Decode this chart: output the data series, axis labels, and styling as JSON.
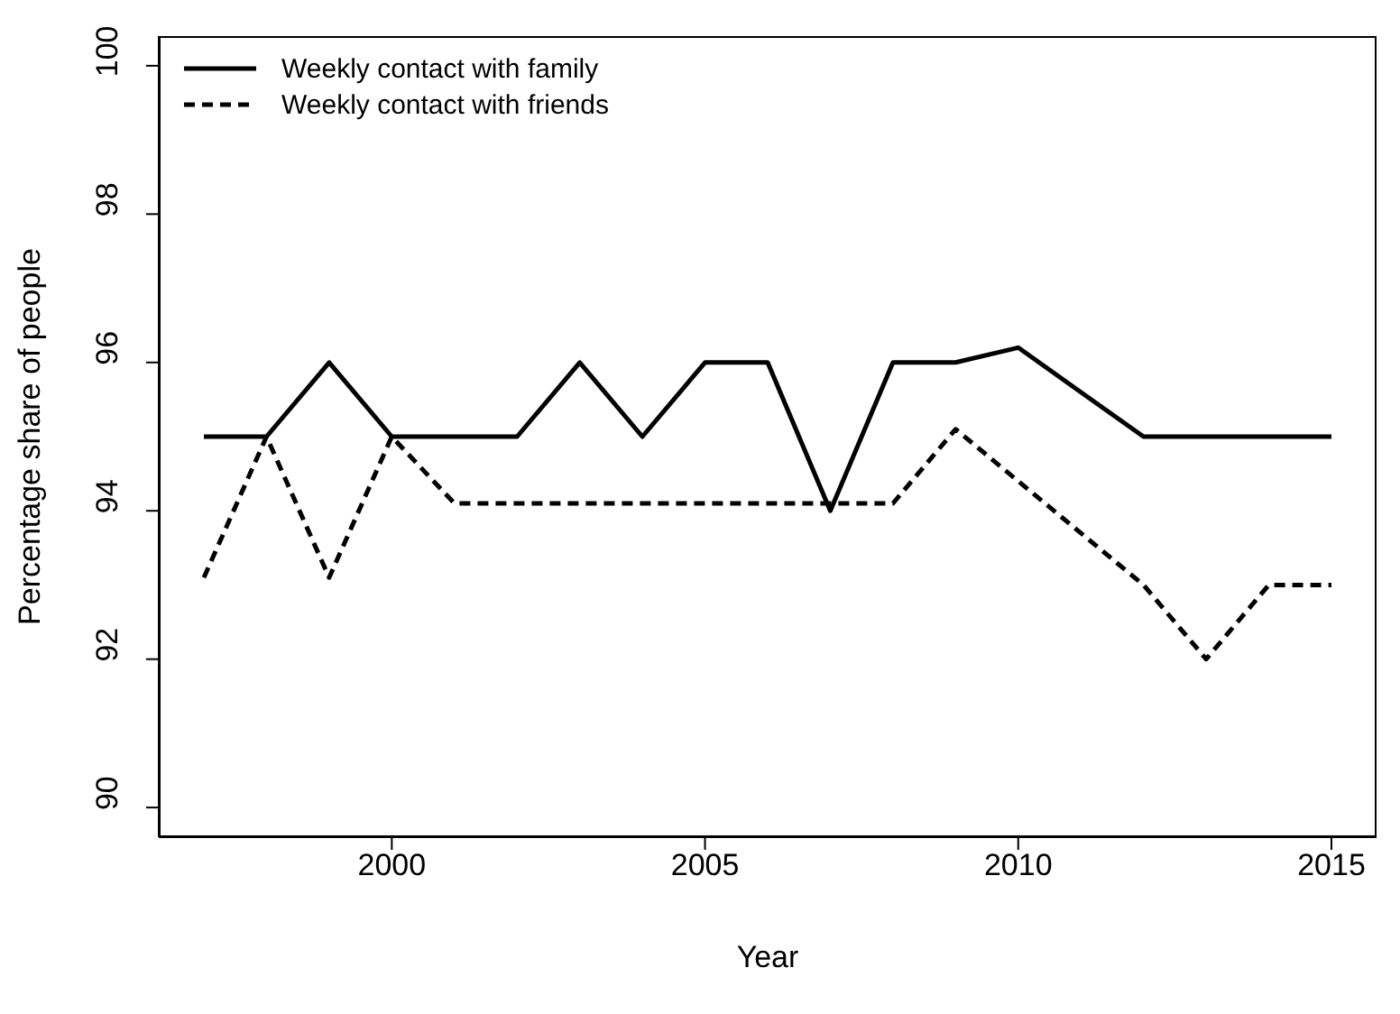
{
  "chart_data": {
    "type": "line",
    "xlabel": "Year",
    "ylabel": "Percentage share of people",
    "x": [
      1997,
      1998,
      1999,
      2000,
      2001,
      2002,
      2003,
      2004,
      2005,
      2006,
      2007,
      2008,
      2009,
      2010,
      2011,
      2012,
      2013,
      2014,
      2015
    ],
    "series": [
      {
        "name": "Weekly contact with family",
        "color": "#000000",
        "line_style": "solid",
        "values": [
          95,
          95,
          96,
          95,
          95,
          95,
          96,
          95,
          96,
          96,
          94,
          96,
          96,
          96.2,
          95.6,
          95,
          95,
          95,
          95
        ]
      },
      {
        "name": "Weekly contact with friends",
        "color": "#000000",
        "line_style": "dashed",
        "values": [
          93.1,
          95,
          93.1,
          95,
          94.1,
          94.1,
          94.1,
          94.1,
          94.1,
          94.1,
          94.1,
          94.1,
          95.1,
          94.4,
          93.7,
          93,
          92,
          93,
          93
        ]
      }
    ],
    "xlim": [
      1996.28,
      2015.72
    ],
    "xticks": [
      2000,
      2005,
      2010,
      2015
    ],
    "ylim": [
      89.6,
      100.4
    ],
    "yticks": [
      90,
      92,
      94,
      96,
      98,
      100
    ],
    "legend": "top left",
    "grid": false
  }
}
